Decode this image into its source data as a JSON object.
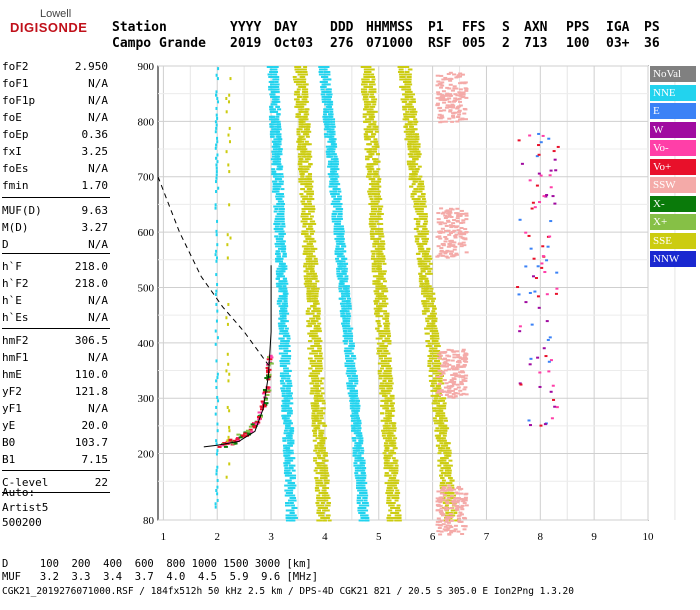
{
  "logo": {
    "line1": "Lowell",
    "line2": "DIGISONDE"
  },
  "header": {
    "labels": [
      "Station",
      "YYYY",
      "DAY",
      "DDD",
      "HHMMSS",
      "P1",
      "FFS",
      "S",
      "AXN",
      "PPS",
      "IGA",
      "PS"
    ],
    "values": [
      "Campo Grande",
      "2019",
      "Oct03",
      "276",
      "071000",
      "RSF",
      "005",
      "2",
      "713",
      "100",
      "03+",
      "36"
    ]
  },
  "params": [
    {
      "label": "foF2",
      "value": "2.950"
    },
    {
      "label": "foF1",
      "value": "N/A"
    },
    {
      "label": "foF1p",
      "value": "N/A"
    },
    {
      "label": "foE",
      "value": "N/A"
    },
    {
      "label": "foEp",
      "value": "0.36"
    },
    {
      "label": "fxI",
      "value": "3.25"
    },
    {
      "label": "foEs",
      "value": "N/A"
    },
    {
      "label": "fmin",
      "value": "1.70"
    },
    {
      "label": "MUF(D)",
      "value": "9.63"
    },
    {
      "label": "M(D)",
      "value": "3.27"
    },
    {
      "label": "D",
      "value": "N/A"
    },
    {
      "label": "h`F",
      "value": "218.0"
    },
    {
      "label": "h`F2",
      "value": "218.0"
    },
    {
      "label": "h`E",
      "value": "N/A"
    },
    {
      "label": "h`Es",
      "value": "N/A"
    },
    {
      "label": "hmF2",
      "value": "306.5"
    },
    {
      "label": "hmF1",
      "value": "N/A"
    },
    {
      "label": "hmE",
      "value": "110.0"
    },
    {
      "label": "yF2",
      "value": "121.8"
    },
    {
      "label": "yF1",
      "value": "N/A"
    },
    {
      "label": "yE",
      "value": "20.0"
    },
    {
      "label": "B0",
      "value": "103.7"
    },
    {
      "label": "B1",
      "value": "7.15"
    },
    {
      "label": "C-level",
      "value": "22"
    }
  ],
  "autoscaling": {
    "line1": "Auto:",
    "line2": "Artist5",
    "line3": "500200"
  },
  "legend": [
    {
      "label": "NoVal",
      "color": "#808080"
    },
    {
      "label": "NNE",
      "color": "#22d3ee"
    },
    {
      "label": "E",
      "color": "#3b82f6"
    },
    {
      "label": "W",
      "color": "#a00aa0"
    },
    {
      "label": "Vo-",
      "color": "#ff3fa8"
    },
    {
      "label": "Vo+",
      "color": "#e8102a"
    },
    {
      "label": "SSW",
      "color": "#f4aaa8"
    },
    {
      "label": "X-",
      "color": "#0a7a0a"
    },
    {
      "label": "X+",
      "color": "#86c046"
    },
    {
      "label": "SSE",
      "color": "#cccc10"
    },
    {
      "label": "NNW",
      "color": "#1a28d0"
    }
  ],
  "footer": {
    "line1": "D     100  200  400  600  800 1000 1500 3000 [km]",
    "line2": "MUF   3.2  3.3  3.4  3.7  4.0  4.5  5.9  9.6 [MHz]",
    "line3": "CGK21_2019276071000.RSF / 184fx512h 50 kHz 2.5 km / DPS-4D CGK21 821 / 20.5 S 305.0 E Ion2Png 1.3.20"
  },
  "chart_data": {
    "type": "scatter",
    "title": "",
    "xlabel": "",
    "ylabel": "",
    "xlim": [
      0.9,
      10.0
    ],
    "ylim": [
      80,
      900
    ],
    "xticks": [
      "1",
      "2",
      "3",
      "4",
      "5",
      "6",
      "7",
      "8",
      "9",
      "10"
    ],
    "yticks": [
      "80",
      "200",
      "300",
      "400",
      "500",
      "600",
      "700",
      "800",
      "900"
    ],
    "grid": true,
    "series": [
      {
        "name": "NNE",
        "color": "#22d3ee",
        "bands": [
          {
            "x": [
              3.0,
              3.35
            ],
            "y": [
              900,
              80
            ]
          },
          {
            "x": [
              3.95,
              4.7
            ],
            "y": [
              900,
              80
            ]
          }
        ]
      },
      {
        "name": "SSE",
        "color": "#cccc10",
        "bands": [
          {
            "x": [
              3.5,
              3.95
            ],
            "y": [
              900,
              80
            ]
          },
          {
            "x": [
              4.75,
              5.25
            ],
            "y": [
              900,
              80
            ]
          },
          {
            "x": [
              5.45,
              6.3
            ],
            "y": [
              900,
              80
            ]
          }
        ]
      },
      {
        "name": "SSW",
        "color": "#f4aaa8",
        "blobs": [
          {
            "x": 6.4,
            "y": 845
          },
          {
            "x": 6.4,
            "y": 600
          },
          {
            "x": 6.4,
            "y": 345
          },
          {
            "x": 6.4,
            "y": 100
          }
        ]
      },
      {
        "name": "Vo+",
        "color": "#e8102a",
        "trace": [
          [
            2.0,
            215
          ],
          [
            2.3,
            225
          ],
          [
            2.6,
            245
          ],
          [
            2.8,
            280
          ],
          [
            2.9,
            320
          ],
          [
            2.95,
            380
          ]
        ]
      }
    ],
    "curves": [
      {
        "name": "profile",
        "points": [
          [
            1.75,
            212
          ],
          [
            2.0,
            215
          ],
          [
            2.4,
            222
          ],
          [
            2.7,
            240
          ],
          [
            2.85,
            280
          ],
          [
            2.95,
            340
          ],
          [
            3.0,
            420
          ],
          [
            3.0,
            540
          ]
        ],
        "style": "solid"
      },
      {
        "name": "mufd",
        "points": [
          [
            0.9,
            700
          ],
          [
            1.3,
            600
          ],
          [
            1.7,
            520
          ],
          [
            2.1,
            465
          ],
          [
            2.5,
            420
          ],
          [
            2.8,
            380
          ],
          [
            2.95,
            360
          ]
        ],
        "style": "dashed"
      }
    ]
  }
}
